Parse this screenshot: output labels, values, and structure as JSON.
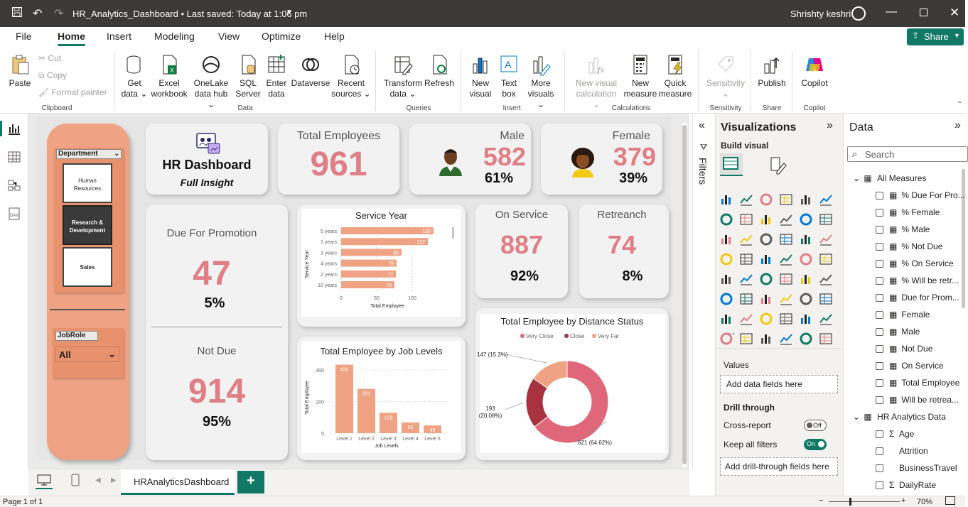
{
  "titlebar": {
    "title": "HR_Analytics_Dashboard • Last saved: Today at 1:06 pm",
    "user": "Shrishty keshri"
  },
  "menu": [
    "File",
    "Home",
    "Insert",
    "Modeling",
    "View",
    "Optimize",
    "Help"
  ],
  "share_label": "Share",
  "ribbon": {
    "clipboard": {
      "paste": "Paste",
      "cut": "Cut",
      "copy": "Copy",
      "format_painter": "Format painter",
      "group": "Clipboard"
    },
    "data": {
      "get_data": [
        "Get",
        "data"
      ],
      "excel": [
        "Excel",
        "workbook"
      ],
      "onelake": [
        "OneLake",
        "data hub"
      ],
      "sql": [
        "SQL",
        "Server"
      ],
      "enter": [
        "Enter",
        "data"
      ],
      "dataverse": [
        "Dataverse"
      ],
      "recent": [
        "Recent",
        "sources"
      ],
      "group": "Data"
    },
    "queries": {
      "transform": [
        "Transform",
        "data"
      ],
      "refresh": [
        "Refresh"
      ],
      "group": "Queries"
    },
    "insert": {
      "new_visual": [
        "New",
        "visual"
      ],
      "text_box": [
        "Text",
        "box"
      ],
      "more_visuals": [
        "More",
        "visuals"
      ],
      "group": "Insert"
    },
    "calculations": {
      "new_visual_calc": [
        "New visual",
        "calculation"
      ],
      "new_measure": [
        "New",
        "measure"
      ],
      "quick_measure": [
        "Quick",
        "measure"
      ],
      "group": "Calculations"
    },
    "sensitivity": {
      "label": "Sensitivity",
      "group": "Sensitivity"
    },
    "share": {
      "publish": "Publish",
      "group": "Share"
    },
    "copilot": {
      "label": "Copilot",
      "group": "Copilot"
    }
  },
  "dashboard": {
    "slicer_department": {
      "title": "Department",
      "items": [
        "Human Resources",
        "Research & Development",
        "Sales"
      ]
    },
    "slicer_jobrole": {
      "title": "JobRole",
      "value": "All"
    },
    "header_card": {
      "title": "HR Dashboard",
      "subtitle": "Full Insight"
    },
    "total_employees": {
      "label": "Total Employees",
      "value": "961"
    },
    "male": {
      "label": "Male",
      "value": "582",
      "pct": "61%"
    },
    "female": {
      "label": "Female",
      "value": "379",
      "pct": "39%"
    },
    "due_promotion": {
      "label": "Due For Promotion",
      "value": "47",
      "pct": "5%"
    },
    "not_due": {
      "label": "Not Due",
      "value": "914",
      "pct": "95%"
    },
    "on_service": {
      "label": "On Service",
      "value": "887",
      "pct": "92%"
    },
    "retreanch": {
      "label": "Retreanch",
      "value": "74",
      "pct": "8%"
    }
  },
  "chart_data": [
    {
      "type": "bar",
      "orientation": "horizontal",
      "title": "Service Year",
      "xlabel": "Total Employee",
      "ylabel": "Service Year",
      "categories": [
        "5 years",
        "1 years",
        "3 years",
        "4 years",
        "2 years",
        "10 years"
      ],
      "values": [
        130,
        122,
        85,
        78,
        77,
        75
      ],
      "xticks": [
        "0",
        "50",
        "100"
      ],
      "xlim": [
        0,
        150
      ],
      "color": "#efa384"
    },
    {
      "type": "bar",
      "title": "Total Employee by Job Levels",
      "xlabel": "Job Levels",
      "ylabel": "Total Employee",
      "categories": [
        "Level 1",
        "Level 2",
        "Level 3",
        "Level 4",
        "Level 5"
      ],
      "values": [
        434,
        281,
        129,
        68,
        49
      ],
      "yticks": [
        "0",
        "200",
        "400"
      ],
      "ylim": [
        0,
        450
      ],
      "color": "#efa384"
    },
    {
      "type": "pie",
      "donut": true,
      "title": "Total Employee by Distance Status",
      "legend_position": "top",
      "series": [
        {
          "name": "Very Close",
          "value": 621,
          "label": "621 (64.62%)",
          "color": "#e0677a"
        },
        {
          "name": "Close",
          "value": 193,
          "label": "193 (20.08%)",
          "color": "#a8323f"
        },
        {
          "name": "Very Far",
          "value": 147,
          "label": "147 (15.3%)",
          "color": "#efa384"
        }
      ]
    }
  ],
  "filters_label": "Filters",
  "visualizations": {
    "title": "Visualizations",
    "build_visual": "Build visual",
    "values": "Values",
    "add_data": "Add data fields here",
    "drill_through": "Drill through",
    "cross_report": "Cross-report",
    "cross_state": "Off",
    "keep_filters": "Keep all filters",
    "keep_state": "On",
    "add_drill": "Add drill-through fields here"
  },
  "data_pane": {
    "title": "Data",
    "search_placeholder": "Search",
    "measures_table": "All Measures",
    "measures": [
      "% Due For Pro...",
      "% Female",
      "% Male",
      "% Not Due",
      "% On Service",
      "% Will be retr...",
      "Due for Prom...",
      "Female",
      "Male",
      "Not Due",
      "On Service",
      "Total Employee",
      "Will be retrea..."
    ],
    "data_table": "HR Analytics Data",
    "fields": [
      "Age",
      "Attrition",
      "BusinessTravel",
      "DailyRate"
    ]
  },
  "tabs": {
    "page_tab": "HRAnalyticsDashboard",
    "add": "+"
  },
  "status": {
    "page": "Page 1 of 1",
    "zoom": "70%"
  },
  "colors": {
    "accent": "#117865",
    "value_pink": "#e07e86",
    "panel": "#efa384"
  }
}
